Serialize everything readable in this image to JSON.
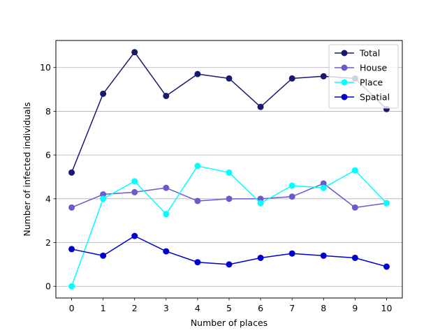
{
  "chart_data": {
    "type": "line",
    "title": "",
    "xlabel": "Number of places",
    "ylabel": "Number of infected individuals",
    "x": [
      0,
      1,
      2,
      3,
      4,
      5,
      6,
      7,
      8,
      9,
      10
    ],
    "xticks": [
      "0",
      "1",
      "2",
      "3",
      "4",
      "5",
      "6",
      "7",
      "8",
      "9",
      "10"
    ],
    "yticks": [
      "0",
      "2",
      "4",
      "6",
      "8",
      "10"
    ],
    "xlim": [
      -0.5,
      10.5
    ],
    "ylim": [
      -0.535,
      11.235
    ],
    "grid": "horizontal",
    "legend_position": "top-right",
    "series": [
      {
        "name": "Total",
        "color": "#191970",
        "values": [
          5.2,
          8.8,
          10.7,
          8.7,
          9.7,
          9.5,
          8.2,
          9.5,
          9.6,
          9.5,
          8.1
        ]
      },
      {
        "name": "House",
        "color": "#6a5acd",
        "values": [
          3.6,
          4.2,
          4.3,
          4.5,
          3.9,
          4.0,
          4.0,
          4.1,
          4.7,
          3.6,
          3.8
        ]
      },
      {
        "name": "Place",
        "color": "#00ffff",
        "values": [
          0.0,
          4.0,
          4.8,
          3.3,
          5.5,
          5.2,
          3.8,
          4.6,
          4.5,
          5.3,
          3.8
        ]
      },
      {
        "name": "Spatial",
        "color": "#0000cd",
        "values": [
          1.7,
          1.4,
          2.3,
          1.6,
          1.1,
          1.0,
          1.3,
          1.5,
          1.4,
          1.3,
          0.9
        ]
      }
    ]
  }
}
